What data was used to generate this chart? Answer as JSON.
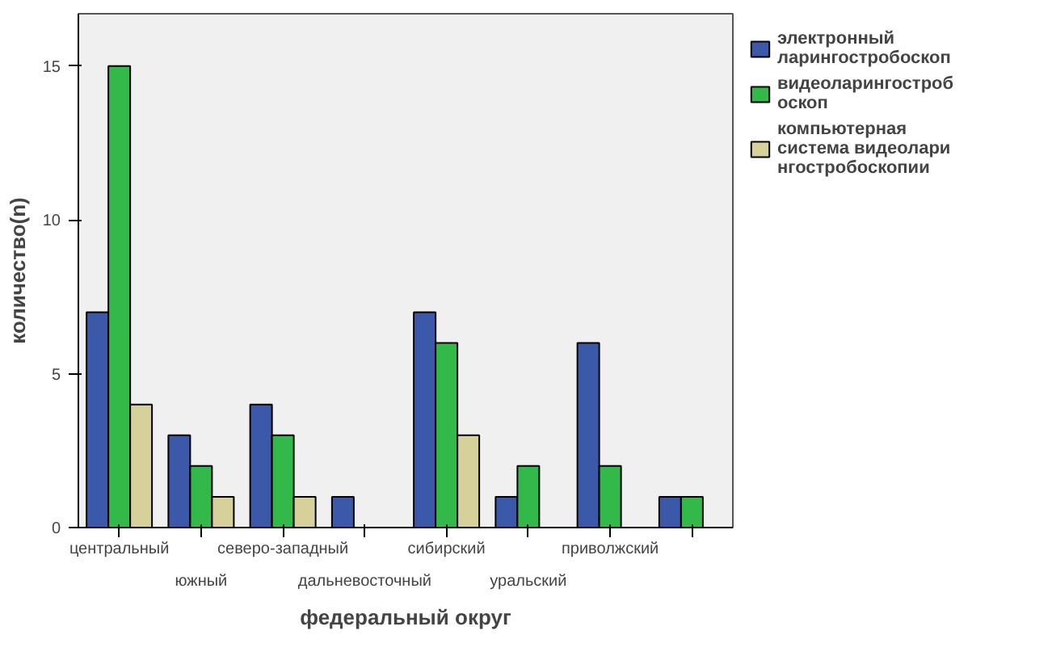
{
  "chart_data": {
    "type": "bar",
    "xlabel": "федеральный округ",
    "ylabel": "количество(n)",
    "categories": [
      "центральный",
      "южный",
      "северо-западный",
      "дальневосточный",
      "сибирский",
      "уральский",
      "приволжский",
      null
    ],
    "series": [
      {
        "name": "электронный ларингостробоскоп",
        "color": "#3c58a8",
        "values": [
          7,
          3,
          4,
          1,
          7,
          1,
          6,
          1
        ]
      },
      {
        "name": "видеоларингостробоскоп",
        "color": "#33b84a",
        "values": [
          15,
          2,
          3,
          0,
          6,
          2,
          2,
          1
        ]
      },
      {
        "name": "компьютерная система видеоларингостробоскопии",
        "color": "#d6d19b",
        "values": [
          4,
          1,
          1,
          0,
          3,
          0,
          0,
          0
        ]
      }
    ],
    "ylim": [
      0,
      16.7
    ],
    "yticks": [
      0,
      5,
      10,
      15
    ],
    "grid": false,
    "legend": "right"
  }
}
